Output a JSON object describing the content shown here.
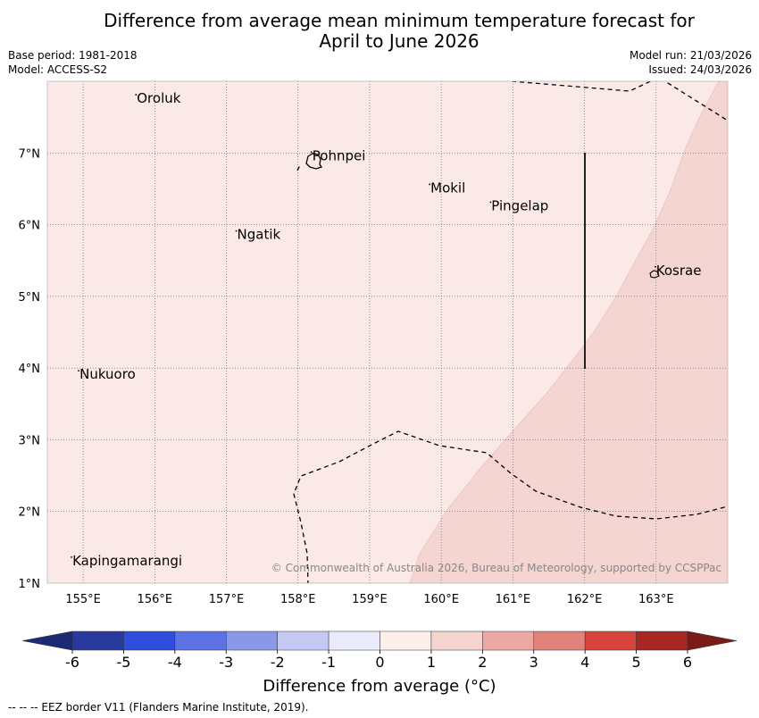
{
  "title_line1": "Difference from average mean minimum temperature forecast for",
  "title_line2": "April to June 2026",
  "base_period": "Base period: 1981-2018",
  "model": "Model: ACCESS-S2",
  "model_run": "Model run: 21/03/2026",
  "issued": "Issued: 24/03/2026",
  "map": {
    "lon_range": [
      154.5,
      164.0
    ],
    "lat_range": [
      1.0,
      8.0
    ],
    "lat_labels": [
      "7°N",
      "6°N",
      "5°N",
      "4°N",
      "3°N",
      "2°N",
      "1°N"
    ],
    "lon_labels": [
      "155°E",
      "156°E",
      "157°E",
      "158°E",
      "159°E",
      "160°E",
      "161°E",
      "162°E",
      "163°E"
    ],
    "places": [
      {
        "name": "Oroluk",
        "lon": 155.75,
        "lat": 7.7
      },
      {
        "name": "Pohnpei",
        "lon": 158.2,
        "lat": 6.9
      },
      {
        "name": "Mokil",
        "lon": 159.85,
        "lat": 6.45
      },
      {
        "name": "Pingelap",
        "lon": 160.7,
        "lat": 6.2
      },
      {
        "name": "Ngatik",
        "lon": 157.15,
        "lat": 5.8
      },
      {
        "name": "Kosrae",
        "lon": 163.0,
        "lat": 5.3
      },
      {
        "name": "Nukuoro",
        "lon": 154.95,
        "lat": 3.85
      },
      {
        "name": "Kapingamarangi",
        "lon": 154.85,
        "lat": 1.25
      }
    ],
    "background_category": "0 to 1",
    "background_color": "#fbe9e7",
    "warmer_category": "1 to 2",
    "warmer_color": "#f4d5d1",
    "copyright": "© Commonwealth of Australia 2026, Bureau of Meteorology, supported by CCSPPac"
  },
  "colorbar": {
    "ticks": [
      "-6",
      "-5",
      "-4",
      "-3",
      "-2",
      "-1",
      "0",
      "1",
      "2",
      "3",
      "4",
      "5",
      "6"
    ],
    "colors": [
      "#283a9e",
      "#2f4cdc",
      "#5c72e2",
      "#8a98e8",
      "#c3c9f2",
      "#eaebfa",
      "#fdefec",
      "#f5d3cf",
      "#eca9a3",
      "#e3827b",
      "#d6443c",
      "#a82723"
    ],
    "under_color": "#1c2a75",
    "over_color": "#7a1b18",
    "label": "Difference from average (°C)"
  },
  "footnote": "--  --  -- EEZ border V11 (Flanders Marine Institute, 2019)."
}
